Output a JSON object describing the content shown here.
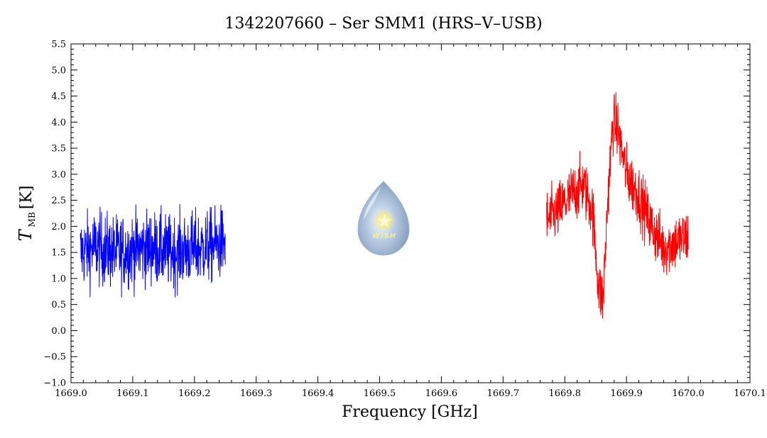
{
  "chart_data": {
    "type": "line",
    "title": "1342207660 – Ser SMM1 (HRS–V–USB)",
    "xlabel": "Frequency [GHz]",
    "ylabel": {
      "symbol": "T",
      "subscript": "MB",
      "unit": "[K]"
    },
    "xlim": [
      1669.0,
      1670.1
    ],
    "ylim": [
      -1.0,
      5.5
    ],
    "x_ticks": [
      "1669.0",
      "1669.1",
      "1669.2",
      "1669.3",
      "1669.4",
      "1669.5",
      "1669.6",
      "1669.7",
      "1669.8",
      "1669.9",
      "1670.0",
      "1670.1"
    ],
    "y_ticks": [
      "−1.0",
      "−0.5",
      "0.0",
      "0.5",
      "1.0",
      "1.5",
      "2.0",
      "2.5",
      "3.0",
      "3.5",
      "4.0",
      "4.5",
      "5.0",
      "5.5"
    ],
    "grid": false,
    "series": [
      {
        "color": "#0000ff",
        "noise": 0.5,
        "x": [
          1669.015,
          1669.04,
          1669.07,
          1669.1,
          1669.13,
          1669.16,
          1669.19,
          1669.22,
          1669.25
        ],
        "y": [
          1.5,
          1.6,
          1.5,
          1.55,
          1.6,
          1.5,
          1.55,
          1.6,
          1.7
        ]
      },
      {
        "color": "#ff0000",
        "noise": 0.4,
        "x": [
          1669.77,
          1669.79,
          1669.81,
          1669.83,
          1669.845,
          1669.855,
          1669.862,
          1669.87,
          1669.878,
          1669.885,
          1669.9,
          1669.92,
          1669.94,
          1669.96,
          1669.98,
          1670.0
        ],
        "y": [
          2.1,
          2.3,
          2.6,
          2.8,
          2.3,
          0.8,
          0.6,
          2.6,
          4.0,
          3.9,
          3.0,
          2.6,
          2.0,
          1.6,
          1.7,
          1.8
        ]
      }
    ]
  },
  "logo": {
    "text": "WISH"
  }
}
